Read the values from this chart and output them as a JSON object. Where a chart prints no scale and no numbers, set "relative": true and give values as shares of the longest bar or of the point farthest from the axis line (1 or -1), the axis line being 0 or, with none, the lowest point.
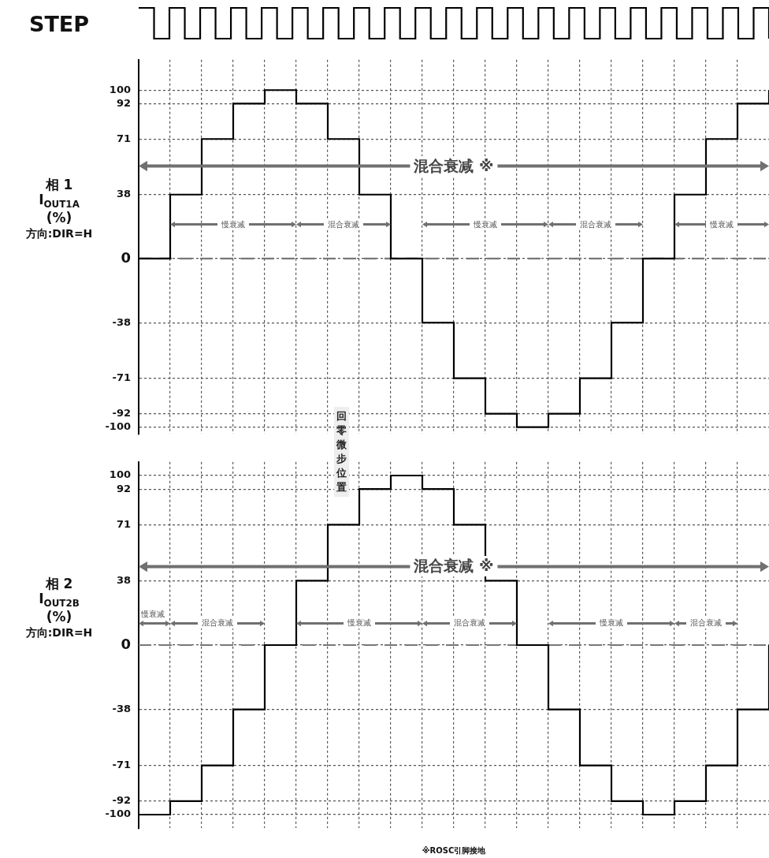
{
  "chart_data": [
    {
      "type": "step",
      "relative": true,
      "ylabel": "STEP",
      "tick_labels": false,
      "color": "#000000",
      "categories": [
        null,
        null,
        null,
        null,
        null,
        null,
        null,
        null,
        null,
        null,
        null,
        null,
        null,
        null,
        null,
        null,
        null,
        null,
        null,
        null,
        null,
        null,
        null,
        null,
        null,
        null,
        null,
        null,
        null,
        null,
        null,
        null,
        null,
        null,
        null,
        null,
        null,
        null,
        null,
        null,
        null,
        null
      ],
      "values": [
        1,
        0,
        1,
        0,
        1,
        0,
        1,
        0,
        1,
        0,
        1,
        0,
        1,
        0,
        1,
        0,
        1,
        0,
        1,
        0,
        1,
        0,
        1,
        0,
        1,
        0,
        1,
        0,
        1,
        0,
        1,
        0,
        1,
        0,
        1,
        0,
        1,
        0,
        1,
        0,
        1,
        0
      ]
    },
    {
      "type": "step",
      "ylabel": "相 1\nI$_{OUT1A}$\n(%)\n方向:DIR=H",
      "tick_labels": "y",
      "grid": true,
      "color": "#000000",
      "categories": [
        null,
        null,
        null,
        null,
        null,
        null,
        null,
        null,
        null,
        null,
        null,
        null,
        null,
        null,
        null,
        null,
        null,
        null,
        null,
        null,
        null
      ],
      "values": [
        0,
        38,
        71,
        92,
        100,
        92,
        71,
        38,
        0,
        -38,
        -71,
        -92,
        -100,
        -92,
        -71,
        -38,
        0,
        38,
        71,
        92,
        100
      ],
      "ylim": [
        -104,
        118
      ],
      "yticks": [
        -100,
        -92,
        -71,
        -38,
        0,
        38,
        71,
        92,
        100
      ],
      "ref_lines": [
        {
          "axis": "y",
          "value": 0,
          "color": "#777777",
          "line_style": "dashed"
        }
      ],
      "annotations": [
        "混合衰减 ※",
        "慢衰减",
        "混合衰减",
        "慢衰减",
        "混合衰减",
        "慢衰减"
      ]
    },
    {
      "type": "step",
      "ylabel": "相 2\nI$_{OUT2B}$\n(%)\n方向:DIR=H",
      "tick_labels": "y",
      "grid": true,
      "color": "#000000",
      "categories": [
        null,
        null,
        null,
        null,
        null,
        null,
        null,
        null,
        null,
        null,
        null,
        null,
        null,
        null,
        null,
        null,
        null,
        null,
        null,
        null,
        null
      ],
      "values": [
        -100,
        -92,
        -71,
        -38,
        0,
        38,
        71,
        92,
        100,
        92,
        71,
        38,
        0,
        -38,
        -71,
        -92,
        -100,
        -92,
        -71,
        -38,
        0
      ],
      "ylim": [
        -108,
        108
      ],
      "yticks": [
        -100,
        -92,
        -71,
        -38,
        0,
        38,
        71,
        92,
        100
      ],
      "ref_lines": [
        {
          "axis": "y",
          "value": 0,
          "color": "#777777",
          "line_style": "dashed"
        }
      ],
      "annotations": [
        "混合衰减 ※",
        "慢衰减",
        "混合衰减",
        "慢衰减",
        "混合衰减",
        "慢衰减",
        "混合衰减",
        "回零微步位置",
        "※ROSC引脚接地"
      ]
    }
  ]
}
